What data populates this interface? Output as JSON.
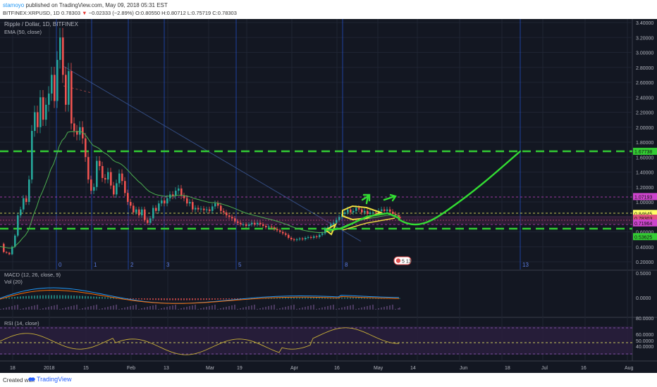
{
  "header": {
    "user": "stamoyo",
    "published": "published on TradingView.com, May 09, 2018 05:31 EST",
    "symbol": "BITFINEX:XRPUSD, 1D",
    "last": "0.78303",
    "change_arrow": "▼",
    "change": "−0.02333 (−2.89%)",
    "ohlc": "O:0.80550 H:0.80712 L:0.75719 C:0.78303"
  },
  "main_pane": {
    "title": "Ripple / Dollar, 1D, BITFINEX",
    "indicator": "EMA (50, close)",
    "price_ticks": [
      "3.40000",
      "3.20000",
      "3.00000",
      "2.80000",
      "2.60000",
      "2.40000",
      "2.20000",
      "2.00000",
      "1.80000",
      "1.60000",
      "1.40000",
      "1.20000",
      "1.00000",
      "0.80000",
      "0.60000",
      "0.40000",
      "0.20000"
    ],
    "price_tags": [
      {
        "label": "1.67738",
        "color": "#33cc33"
      },
      {
        "label": "1.07193",
        "color": "#cc44cc"
      },
      {
        "label": "0.84645",
        "color": "#ffff66"
      },
      {
        "label": "0.78303",
        "color": "#e05080"
      },
      {
        "label": "0.71964",
        "color": "#cc44cc"
      },
      {
        "label": "0.53625",
        "color": "#33cc33"
      }
    ],
    "cycle_markers": [
      "0",
      "1",
      "2",
      "3",
      "5",
      "8",
      "13"
    ],
    "event_badge": "5 13",
    "colors": {
      "up": "#26a69a",
      "down": "#ef5350",
      "ema": "#4caf50",
      "projection": "#33dd33",
      "support": "#33cc33",
      "highlight": "#f0e040"
    }
  },
  "macd_pane": {
    "title": "MACD (12, 26, close, 9)",
    "volume": "Vol (20)",
    "ticks": [
      "0.5000",
      "0.0000"
    ]
  },
  "rsi_pane": {
    "title": "RSI (14, close)",
    "ticks": [
      "80.0000",
      "60.0000",
      "50.0000",
      "40.0000"
    ],
    "value": "50.0000"
  },
  "time_axis": [
    "18",
    "2018",
    "15",
    "Feb",
    "13",
    "Mar",
    "19",
    "Apr",
    "16",
    "May",
    "14",
    "Jun",
    "18",
    "Jul",
    "16",
    "Aug"
  ],
  "footer": {
    "created_with": "Created with",
    "brand": "TradingView"
  }
}
